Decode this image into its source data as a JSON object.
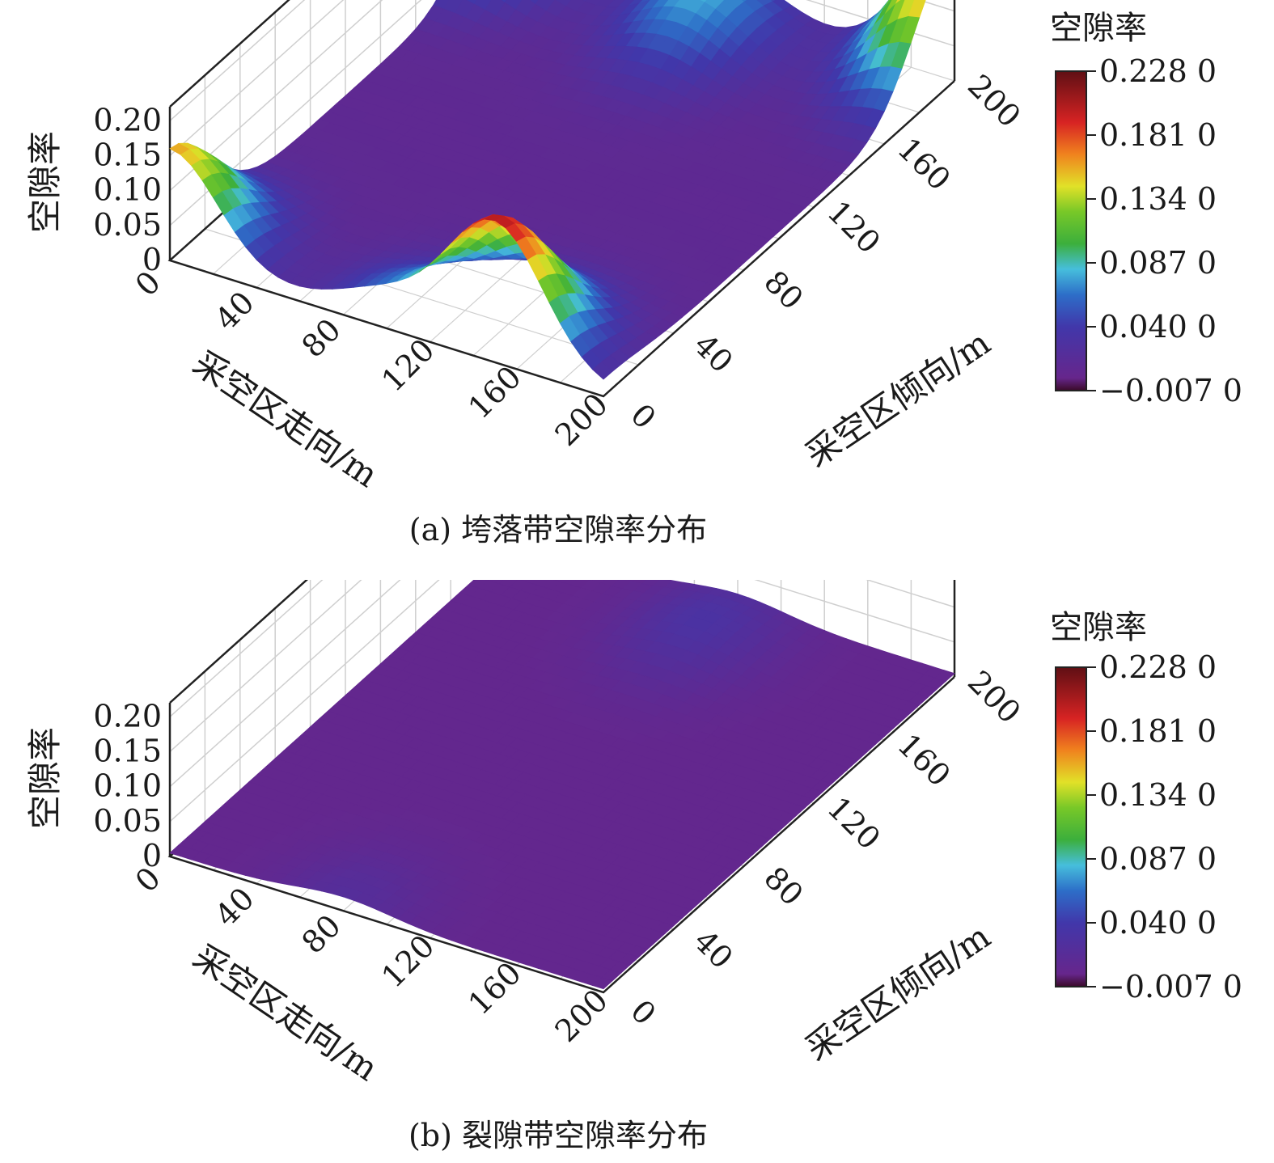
{
  "figures": [
    {
      "caption": "(a) 垮落带空隙率分布",
      "zlabel": "空隙率",
      "xlabel": "采空区走向/m",
      "ylabel": "采空区倾向/m",
      "colorbar_title": "空隙率"
    },
    {
      "caption": "(b) 裂隙带空隙率分布",
      "zlabel": "空隙率",
      "xlabel": "采空区走向/m",
      "ylabel": "采空区倾向/m",
      "colorbar_title": "空隙率"
    }
  ],
  "chart_data": [
    {
      "type": "surface",
      "title": "(a) 垮落带空隙率分布",
      "xlabel": "采空区走向/m",
      "ylabel": "采空区倾向/m",
      "zlabel": "空隙率",
      "x_ticks": [
        "0",
        "40",
        "80",
        "120",
        "160",
        "200"
      ],
      "y_ticks": [
        "0",
        "40",
        "80",
        "120",
        "160",
        "200"
      ],
      "z_ticks": [
        "0",
        "0.05",
        "0.10",
        "0.15",
        "0.20"
      ],
      "xlim": [
        0,
        200
      ],
      "ylim": [
        0,
        200
      ],
      "zlim": [
        0,
        0.22
      ],
      "colorbar": {
        "title": "空隙率",
        "ticks": [
          "0.228 0",
          "0.181 0",
          "0.134 0",
          "0.087 0",
          "0.040 0",
          "−0.007 0"
        ],
        "range": [
          -0.007,
          0.228
        ]
      },
      "base_value": 0.01,
      "peaks": [
        {
          "x": 0,
          "y": 200,
          "z": 0.228
        },
        {
          "x": 200,
          "y": 200,
          "z": 0.2
        },
        {
          "x": 0,
          "y": 0,
          "z": 0.16
        },
        {
          "x": 150,
          "y": 0,
          "z": 0.2
        },
        {
          "x": 100,
          "y": 180,
          "z": 0.08
        },
        {
          "x": 100,
          "y": 0,
          "z": 0.05
        }
      ]
    },
    {
      "type": "surface",
      "title": "(b) 裂隙带空隙率分布",
      "xlabel": "采空区走向/m",
      "ylabel": "采空区倾向/m",
      "zlabel": "空隙率",
      "x_ticks": [
        "0",
        "40",
        "80",
        "120",
        "160",
        "200"
      ],
      "y_ticks": [
        "0",
        "40",
        "80",
        "120",
        "160",
        "200"
      ],
      "z_ticks": [
        "0",
        "0.05",
        "0.10",
        "0.15",
        "0.20"
      ],
      "xlim": [
        0,
        200
      ],
      "ylim": [
        0,
        200
      ],
      "zlim": [
        0,
        0.22
      ],
      "colorbar": {
        "title": "空隙率",
        "ticks": [
          "0.228 0",
          "0.181 0",
          "0.134 0",
          "0.087 0",
          "0.040 0",
          "−0.007 0"
        ],
        "range": [
          -0.007,
          0.228
        ]
      },
      "base_value": 0.005,
      "peaks": [
        {
          "x": 100,
          "y": 180,
          "z": 0.03
        },
        {
          "x": 80,
          "y": 0,
          "z": 0.02
        }
      ]
    }
  ]
}
